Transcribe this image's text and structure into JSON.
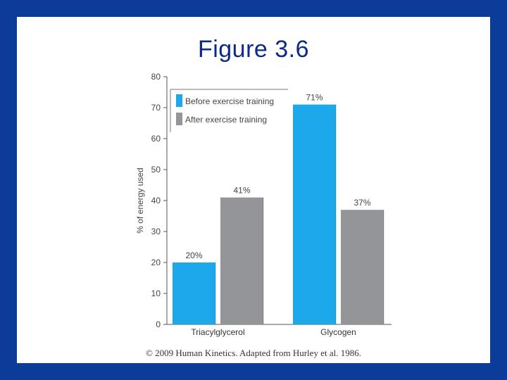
{
  "slide": {
    "title": "Figure 3.6",
    "credit": "© 2009 Human Kinetics. Adapted from Hurley et al. 1986."
  },
  "colors": {
    "background_frame": "#0b3c9a",
    "title": "#0b2a8c",
    "before": "#1ea8ec",
    "after": "#939598"
  },
  "chart_data": {
    "type": "bar",
    "title": "",
    "xlabel": "",
    "ylabel": "% of energy used",
    "ylim": [
      0,
      80
    ],
    "yticks": [
      0,
      10,
      20,
      30,
      40,
      50,
      60,
      70,
      80
    ],
    "categories": [
      "Triacylglycerol",
      "Glycogen"
    ],
    "series": [
      {
        "name": "Before exercise training",
        "values": [
          20,
          71
        ],
        "labels": [
          "20%",
          "71%"
        ],
        "color": "#1ea8ec"
      },
      {
        "name": "After exercise training",
        "values": [
          41,
          37
        ],
        "labels": [
          "41%",
          "37%"
        ],
        "color": "#939598"
      }
    ],
    "legend_position": "top-left",
    "grid": false
  }
}
